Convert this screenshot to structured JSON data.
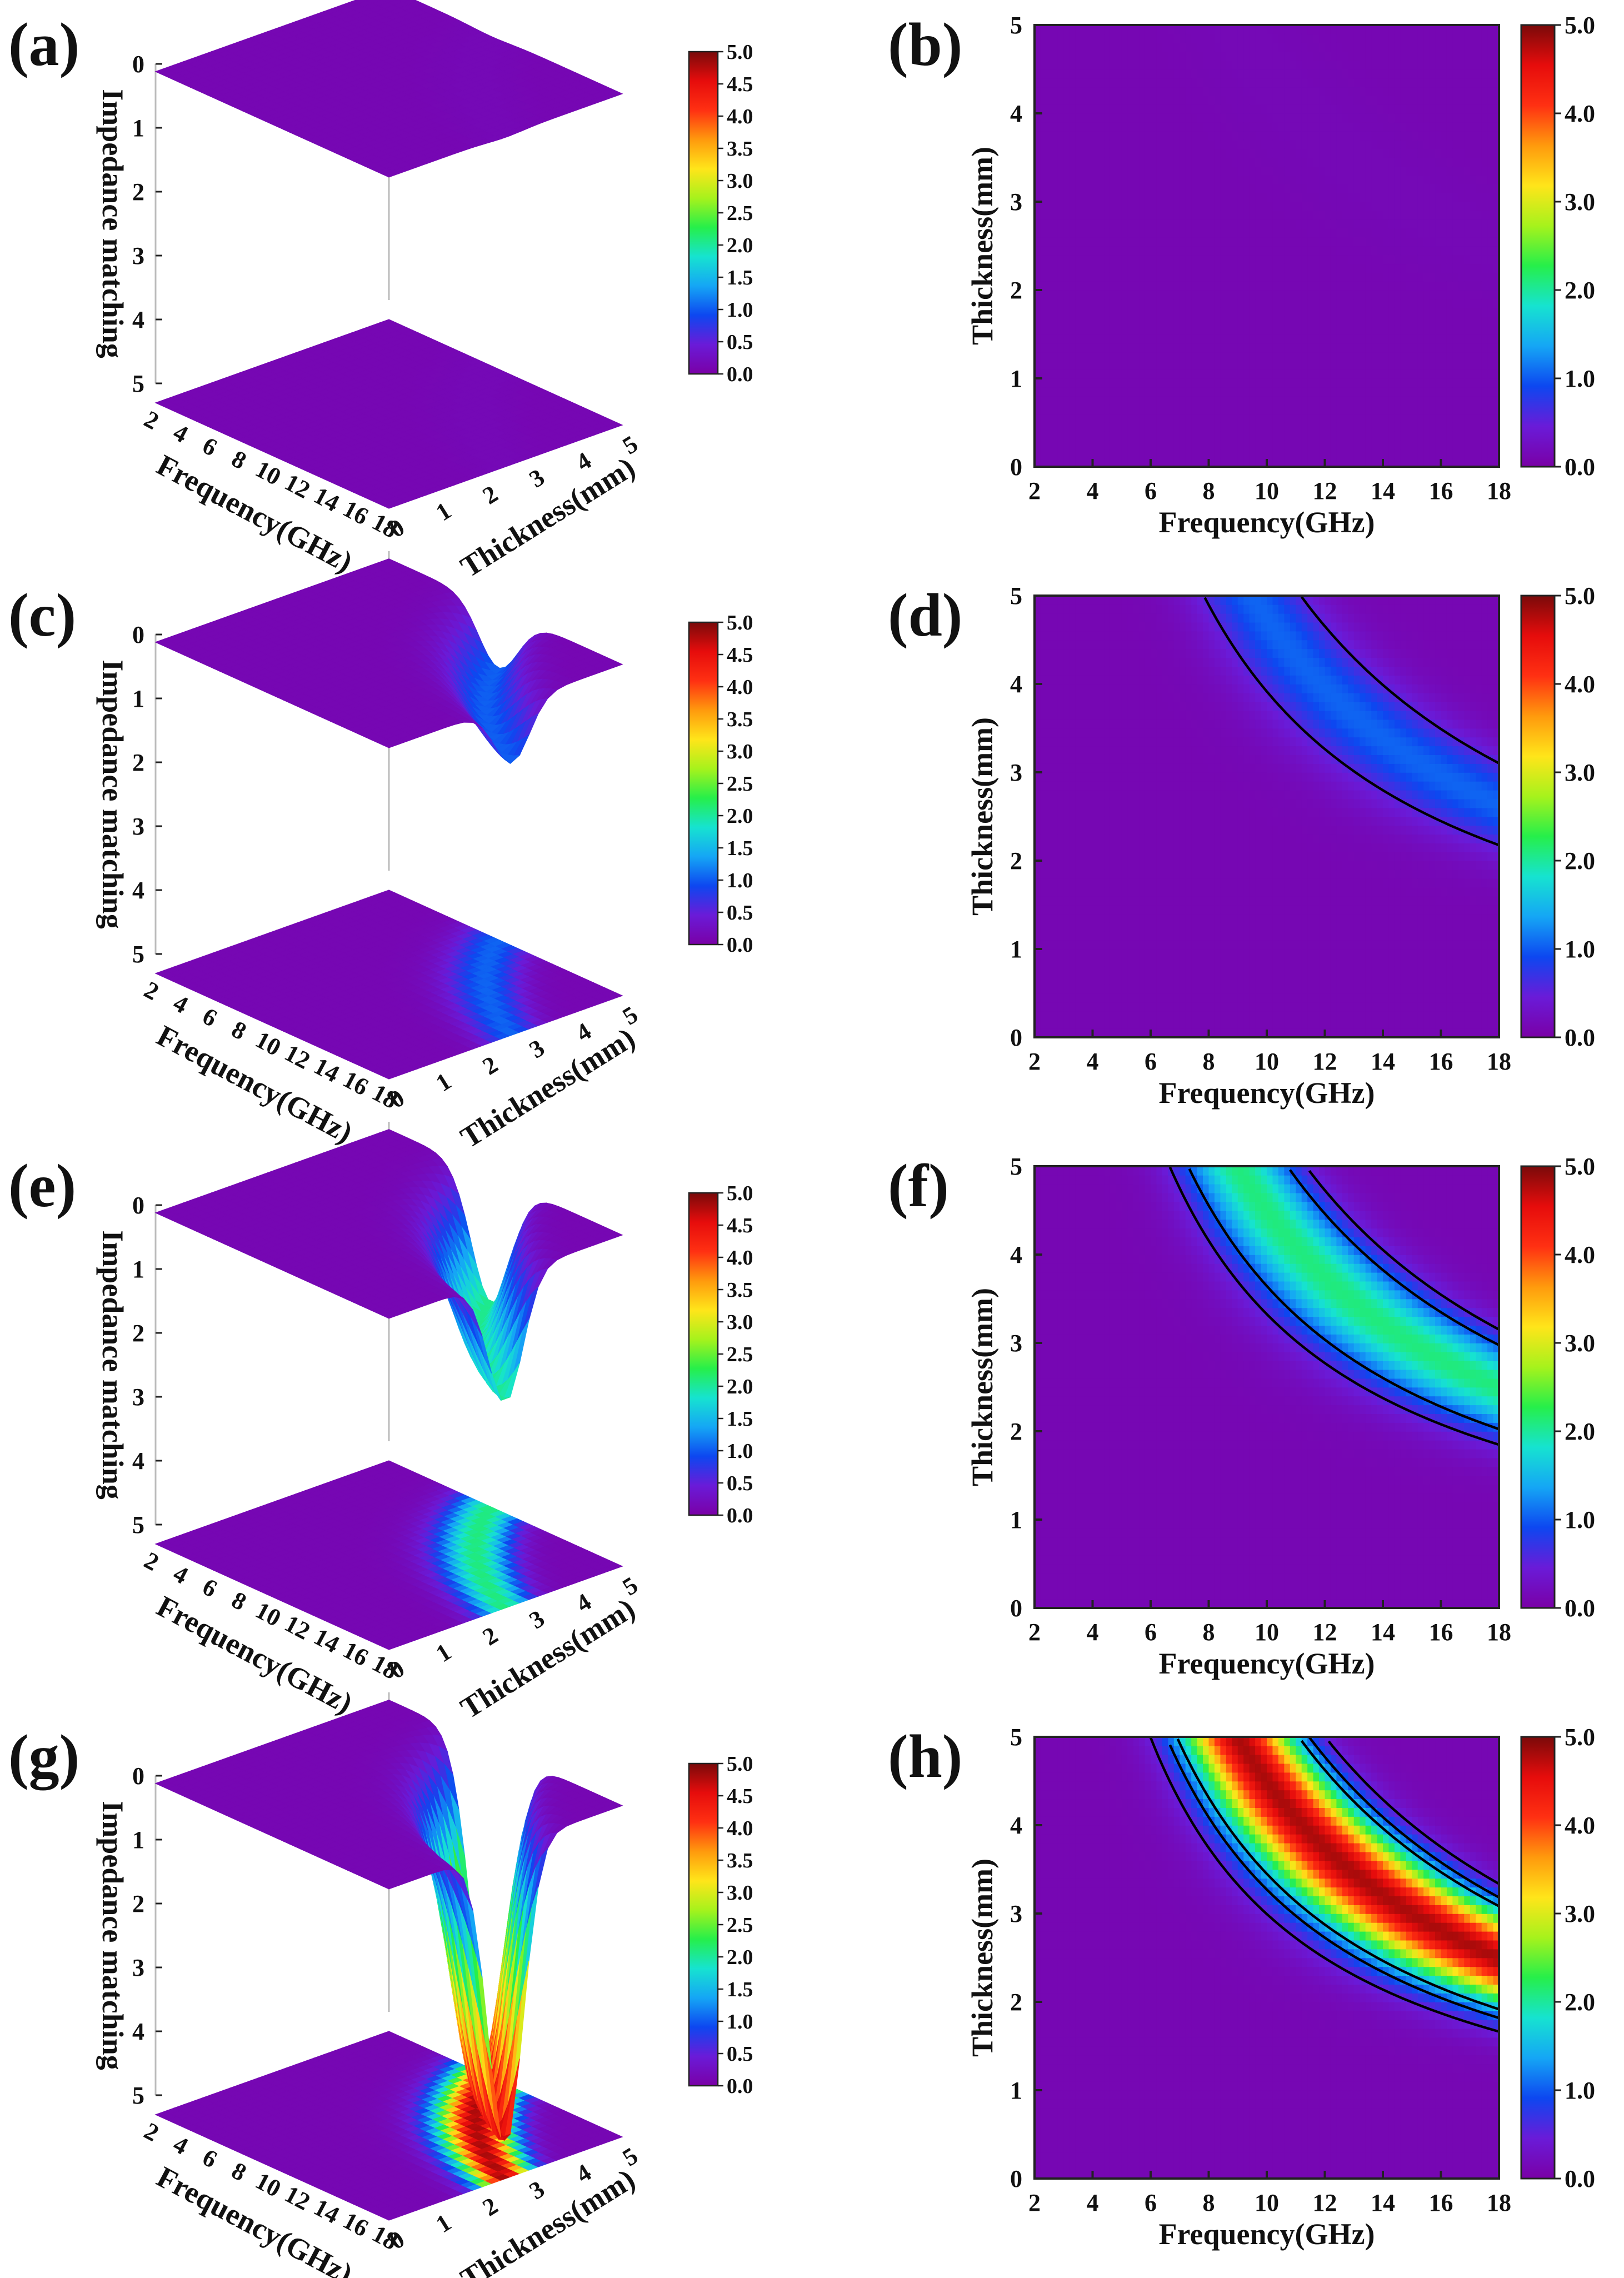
{
  "chart_data": [
    {
      "panel": "(a)",
      "type": "surface3d",
      "amplitude": 0.15,
      "centerOffset": 0.0,
      "zlabel": "Impedance matching",
      "xlabel": "Frequency(GHz)",
      "ylabel": "Thickness(mm)",
      "zTicks": [
        "0",
        "1",
        "2",
        "3",
        "4",
        "5"
      ],
      "xTicks": [
        "2",
        "4",
        "6",
        "8",
        "10",
        "12",
        "14",
        "16",
        "18"
      ],
      "yTicks": [
        "0",
        "1",
        "2",
        "3",
        "4",
        "5"
      ],
      "colorbarTicks": [
        "5.0",
        "4.5",
        "4.0",
        "3.5",
        "3.0",
        "2.5",
        "2.0",
        "1.5",
        "1.0",
        "0.5",
        "0.0"
      ]
    },
    {
      "panel": "(b)",
      "type": "heatmap",
      "amplitude": 0.15,
      "centerOffset": 0.0,
      "xlim": [
        2,
        18
      ],
      "ylim": [
        0,
        5
      ],
      "xlabel": "Frequency(GHz)",
      "ylabel": "Thickness(mm)",
      "xTicks": [
        "2",
        "4",
        "6",
        "8",
        "10",
        "12",
        "14",
        "16",
        "18"
      ],
      "yTicks": [
        "0",
        "1",
        "2",
        "3",
        "4",
        "5"
      ],
      "colorbarTicks": [
        "5.0",
        "4.0",
        "3.0",
        "2.0",
        "1.0",
        "0.0"
      ]
    },
    {
      "panel": "(c)",
      "type": "surface3d",
      "amplitude": 1.05,
      "centerOffset": 0.25,
      "zlabel": "Impedance matching",
      "xlabel": "Frequency(GHz)",
      "ylabel": "Thickness(mm)",
      "zTicks": [
        "0",
        "1",
        "2",
        "3",
        "4",
        "5"
      ],
      "xTicks": [
        "2",
        "4",
        "6",
        "8",
        "10",
        "12",
        "14",
        "16",
        "18"
      ],
      "yTicks": [
        "0",
        "1",
        "2",
        "3",
        "4",
        "5"
      ],
      "colorbarTicks": [
        "5.0",
        "4.5",
        "4.0",
        "3.5",
        "3.0",
        "2.5",
        "2.0",
        "1.5",
        "1.0",
        "0.5",
        "0.0"
      ]
    },
    {
      "panel": "(d)",
      "type": "heatmap",
      "amplitude": 1.05,
      "centerOffset": 0.25,
      "xlim": [
        2,
        18
      ],
      "ylim": [
        0,
        5
      ],
      "xlabel": "Frequency(GHz)",
      "ylabel": "Thickness(mm)",
      "xTicks": [
        "2",
        "4",
        "6",
        "8",
        "10",
        "12",
        "14",
        "16",
        "18"
      ],
      "yTicks": [
        "0",
        "1",
        "2",
        "3",
        "4",
        "5"
      ],
      "colorbarTicks": [
        "5.0",
        "4.0",
        "3.0",
        "2.0",
        "1.0",
        "0.0"
      ]
    },
    {
      "panel": "(e)",
      "type": "surface3d",
      "amplitude": 2.1,
      "centerOffset": 0.0,
      "zlabel": "Impedance matching",
      "xlabel": "Frequency(GHz)",
      "ylabel": "Thickness(mm)",
      "zTicks": [
        "0",
        "1",
        "2",
        "3",
        "4",
        "5"
      ],
      "xTicks": [
        "2",
        "4",
        "6",
        "8",
        "10",
        "12",
        "14",
        "16",
        "18"
      ],
      "yTicks": [
        "0",
        "1",
        "2",
        "3",
        "4",
        "5"
      ],
      "colorbarTicks": [
        "5.0",
        "4.5",
        "4.0",
        "3.5",
        "3.0",
        "2.5",
        "2.0",
        "1.5",
        "1.0",
        "0.5",
        "0.0"
      ]
    },
    {
      "panel": "(f)",
      "type": "heatmap",
      "amplitude": 2.1,
      "centerOffset": 0.0,
      "xlim": [
        2,
        18
      ],
      "ylim": [
        0,
        5
      ],
      "xlabel": "Frequency(GHz)",
      "ylabel": "Thickness(mm)",
      "xTicks": [
        "2",
        "4",
        "6",
        "8",
        "10",
        "12",
        "14",
        "16",
        "18"
      ],
      "yTicks": [
        "0",
        "1",
        "2",
        "3",
        "4",
        "5"
      ],
      "colorbarTicks": [
        "5.0",
        "4.0",
        "3.0",
        "2.0",
        "1.0",
        "0.0"
      ]
    },
    {
      "panel": "(g)",
      "type": "surface3d",
      "amplitude": 4.8,
      "centerOffset": 0.0,
      "zlabel": "Impedance matching",
      "xlabel": "Frequency(GHz)",
      "ylabel": "Thickness(mm)",
      "zTicks": [
        "0",
        "1",
        "2",
        "3",
        "4",
        "5"
      ],
      "xTicks": [
        "2",
        "4",
        "6",
        "8",
        "10",
        "12",
        "14",
        "16",
        "18"
      ],
      "yTicks": [
        "0",
        "1",
        "2",
        "3",
        "4",
        "5"
      ],
      "colorbarTicks": [
        "5.0",
        "4.5",
        "4.0",
        "3.5",
        "3.0",
        "2.5",
        "2.0",
        "1.5",
        "1.0",
        "0.5",
        "0.0"
      ]
    },
    {
      "panel": "(h)",
      "type": "heatmap",
      "amplitude": 4.8,
      "centerOffset": 0.0,
      "xlim": [
        2,
        18
      ],
      "ylim": [
        0,
        5
      ],
      "xlabel": "Frequency(GHz)",
      "ylabel": "Thickness(mm)",
      "xTicks": [
        "2",
        "4",
        "6",
        "8",
        "10",
        "12",
        "14",
        "16",
        "18"
      ],
      "yTicks": [
        "0",
        "1",
        "2",
        "3",
        "4",
        "5"
      ],
      "colorbarTicks": [
        "5.0",
        "4.0",
        "3.0",
        "2.0",
        "1.0",
        "0.0"
      ]
    }
  ],
  "colors": {
    "stops": [
      "#7a00a6",
      "#6a1bd8",
      "#0d47f0",
      "#15a6f5",
      "#16e3d0",
      "#26ef4a",
      "#a6f21c",
      "#ffe51a",
      "#ff9a0d",
      "#ff3012",
      "#e60c0c",
      "#7a0a0a"
    ],
    "contour": "#000000",
    "axis": "#222222"
  }
}
